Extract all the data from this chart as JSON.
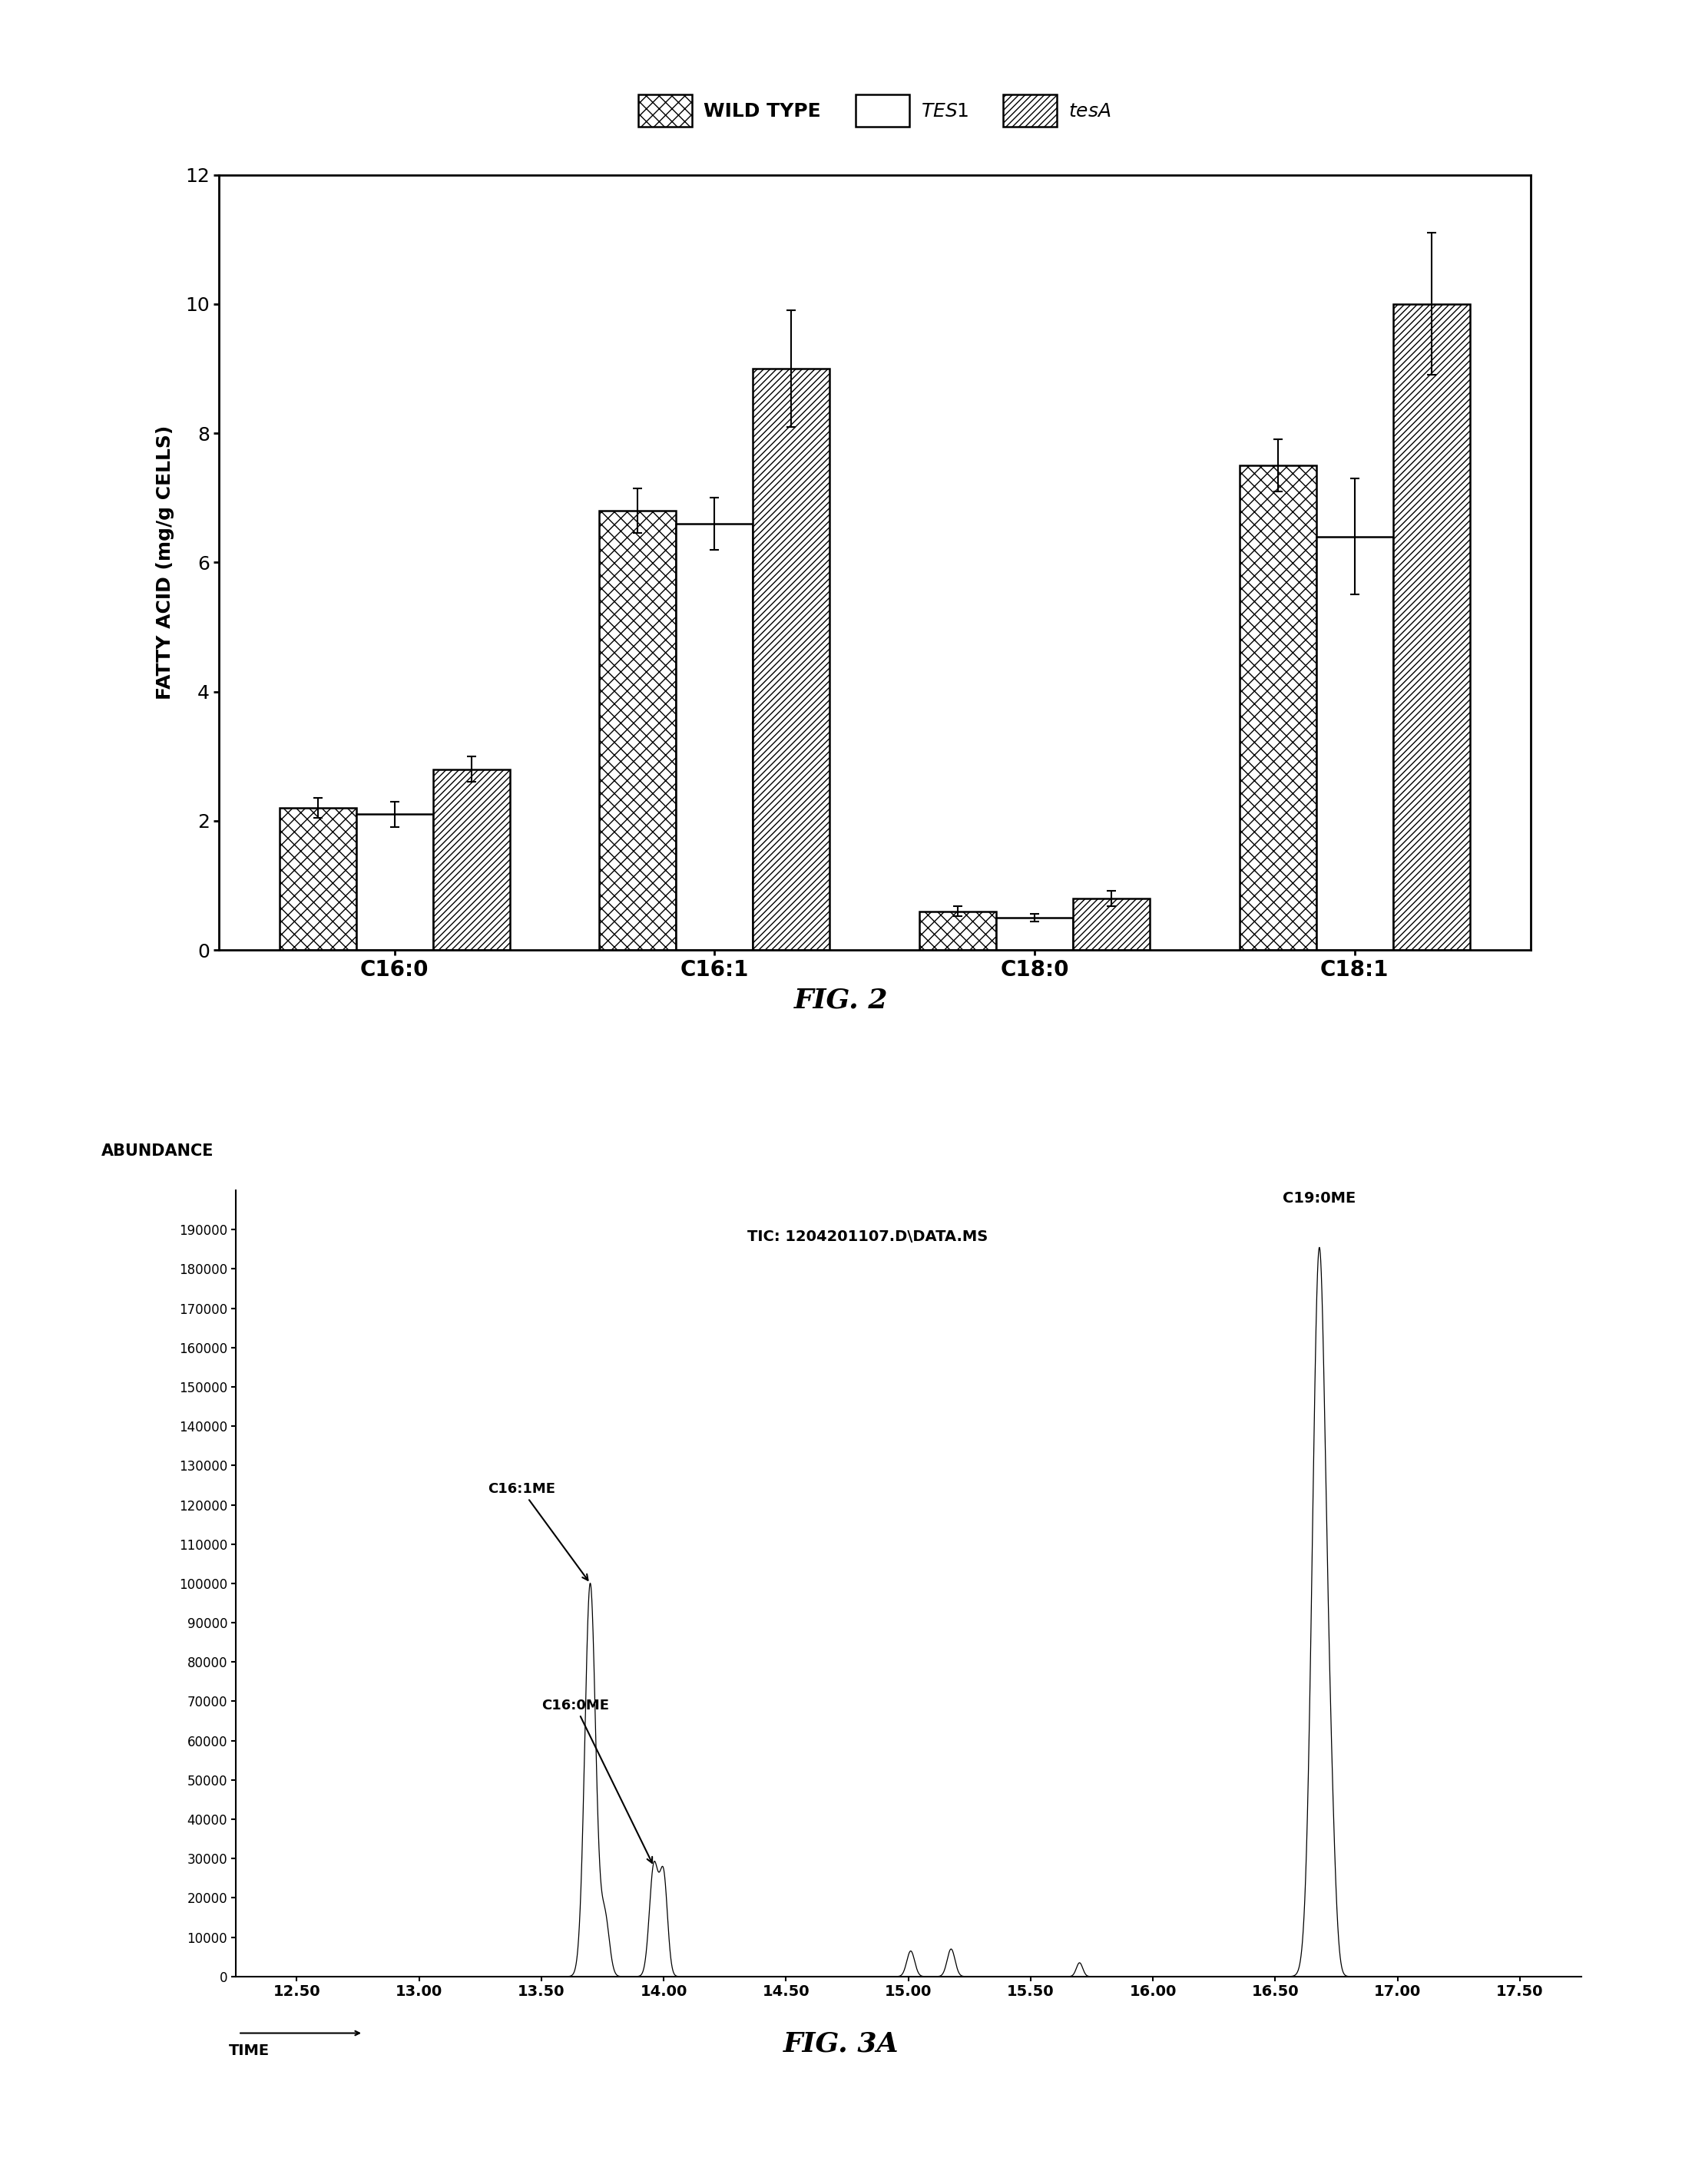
{
  "fig2": {
    "categories": [
      "C16:0",
      "C16:1",
      "C18:0",
      "C18:1"
    ],
    "wild_type": [
      2.2,
      6.8,
      0.6,
      7.5
    ],
    "tes1": [
      2.1,
      6.6,
      0.5,
      6.4
    ],
    "tesa": [
      2.8,
      9.0,
      0.8,
      10.0
    ],
    "wild_type_err": [
      0.15,
      0.35,
      0.08,
      0.4
    ],
    "tes1_err": [
      0.2,
      0.4,
      0.06,
      0.9
    ],
    "tesa_err": [
      0.2,
      0.9,
      0.12,
      1.1
    ],
    "ylabel": "FATTY ACID (mg/g CELLS)",
    "ylim": [
      0,
      12
    ],
    "yticks": [
      0,
      2,
      4,
      6,
      8,
      10,
      12
    ],
    "fig_label": "FIG. 2"
  },
  "fig3a": {
    "title": "TIC: 1204201107.D\\DATA.MS",
    "xlabel": "TIME",
    "ylabel": "ABUNDANCE",
    "xlim": [
      12.25,
      17.75
    ],
    "ylim": [
      0,
      200000
    ],
    "yticks": [
      0,
      10000,
      20000,
      30000,
      40000,
      50000,
      60000,
      70000,
      80000,
      90000,
      100000,
      110000,
      120000,
      130000,
      140000,
      150000,
      160000,
      170000,
      180000,
      190000
    ],
    "xticks": [
      12.5,
      13.0,
      13.5,
      14.0,
      14.5,
      15.0,
      15.5,
      16.0,
      16.5,
      17.0,
      17.5
    ],
    "peaks": [
      {
        "mu": 13.7,
        "sigma": 0.022,
        "amp": 100000
      },
      {
        "mu": 13.76,
        "sigma": 0.018,
        "amp": 15000
      },
      {
        "mu": 13.96,
        "sigma": 0.018,
        "amp": 28000
      },
      {
        "mu": 14.0,
        "sigma": 0.016,
        "amp": 25000
      },
      {
        "mu": 15.01,
        "sigma": 0.016,
        "amp": 6500
      },
      {
        "mu": 15.175,
        "sigma": 0.016,
        "amp": 7000
      },
      {
        "mu": 15.7,
        "sigma": 0.013,
        "amp": 3500
      },
      {
        "mu": 16.68,
        "sigma": 0.028,
        "amp": 185000
      },
      {
        "mu": 16.73,
        "sigma": 0.018,
        "amp": 22000
      }
    ],
    "fig_label": "FIG. 3A"
  }
}
